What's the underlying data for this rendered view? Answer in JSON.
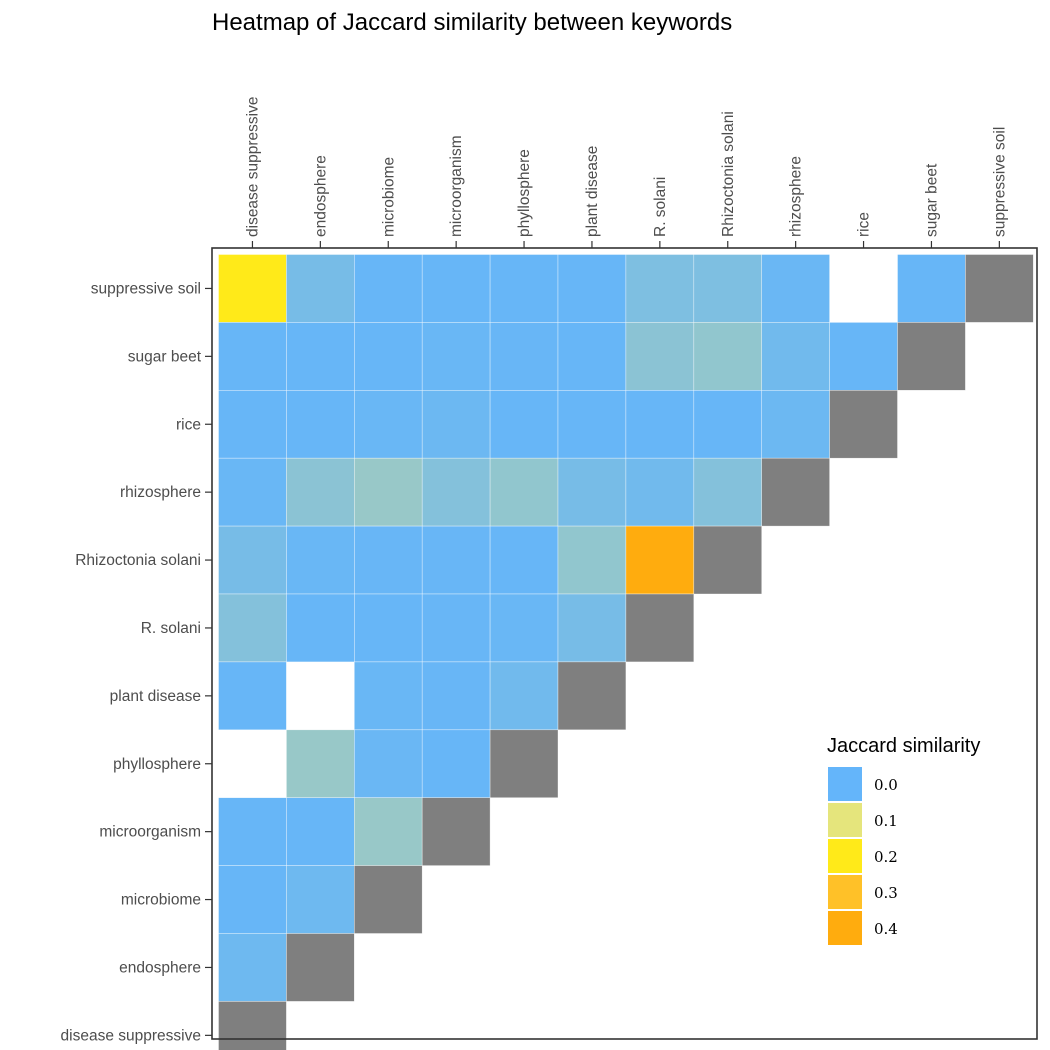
{
  "chart_data": {
    "type": "heatmap",
    "title": "Heatmap of Jaccard similarity between keywords",
    "x_categories": [
      "disease suppressive",
      "endosphere",
      "microbiome",
      "microorganism",
      "phyllosphere",
      "plant disease",
      "R. solani",
      "Rhizoctonia solani",
      "rhizosphere",
      "rice",
      "sugar beet",
      "suppressive soil"
    ],
    "y_categories": [
      "suppressive soil",
      "sugar beet",
      "rice",
      "rhizosphere",
      "Rhizoctonia solani",
      "R. solani",
      "plant disease",
      "phyllosphere",
      "microorganism",
      "microbiome",
      "endosphere",
      "disease suppressive"
    ],
    "values": [
      [
        0.2,
        0.015,
        0.002,
        0.002,
        0.002,
        0.002,
        0.02,
        0.02,
        0.005,
        null,
        0.002,
        "self"
      ],
      [
        0.002,
        0.002,
        0.002,
        0.004,
        0.003,
        0.002,
        0.03,
        0.035,
        0.01,
        0.002,
        "self"
      ],
      [
        0.002,
        0.002,
        0.004,
        0.006,
        0.002,
        0.002,
        0.002,
        0.002,
        0.006,
        "self"
      ],
      [
        0.004,
        0.03,
        0.04,
        0.025,
        0.035,
        0.015,
        0.01,
        0.025,
        "self"
      ],
      [
        0.015,
        0.004,
        0.003,
        0.003,
        0.002,
        0.035,
        0.4,
        "self"
      ],
      [
        0.025,
        0.002,
        0.002,
        0.003,
        0.004,
        0.015,
        "self"
      ],
      [
        0.002,
        null,
        0.004,
        0.003,
        0.01,
        "self"
      ],
      [
        null,
        0.04,
        0.005,
        0.002,
        "self"
      ],
      [
        0.002,
        0.002,
        0.04,
        "self"
      ],
      [
        0.002,
        0.008,
        "self"
      ],
      [
        0.008,
        "self"
      ],
      [
        "self"
      ]
    ],
    "self_color": "#7f7f7f",
    "legend": {
      "title": "Jaccard similarity",
      "position": "right",
      "entries": [
        {
          "label": "0.0",
          "value": 0.0,
          "color": "#64b5fa"
        },
        {
          "label": "0.1",
          "value": 0.1,
          "color": "#e5e57c"
        },
        {
          "label": "0.2",
          "value": 0.2,
          "color": "#ffea19"
        },
        {
          "label": "0.3",
          "value": 0.3,
          "color": "#ffc128"
        },
        {
          "label": "0.4",
          "value": 0.4,
          "color": "#ffac0e"
        }
      ]
    },
    "xlabel": "",
    "ylabel": "",
    "grid": false
  }
}
